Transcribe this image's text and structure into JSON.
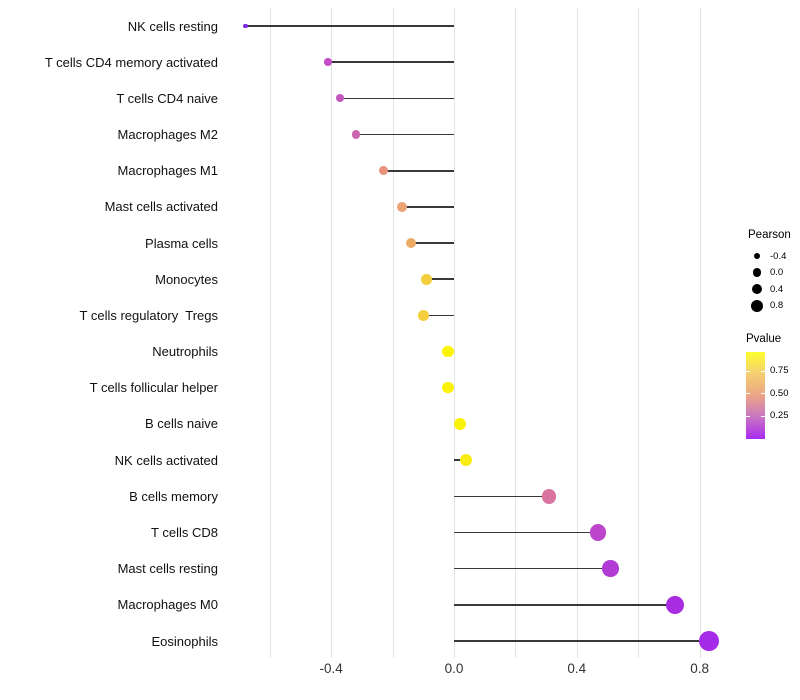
{
  "chart_data": {
    "type": "scatter",
    "subtype": "lollipop",
    "title": "",
    "xlabel": "",
    "ylabel": "",
    "x_ticks": [
      "-0.4",
      "0.0",
      "0.4",
      "0.8"
    ],
    "x_tick_values": [
      -0.4,
      0.0,
      0.4,
      0.8
    ],
    "xlim": [
      -0.7,
      1.1
    ],
    "grid": "vertical-only",
    "categories": [
      "NK cells resting",
      "T cells CD4 memory activated",
      "T cells CD4 naive",
      "Macrophages M2",
      "Macrophages M1",
      "Mast cells activated",
      "Plasma cells",
      "Monocytes",
      "T cells regulatory  Tregs",
      "Neutrophils",
      "T cells follicular helper",
      "B cells naive",
      "NK cells activated",
      "B cells memory",
      "T cells CD8",
      "Mast cells resting",
      "Macrophages M0",
      "Eosinophils"
    ],
    "series": [
      {
        "name": "Pearson",
        "values": [
          -0.68,
          -0.41,
          -0.37,
          -0.32,
          -0.23,
          -0.17,
          -0.14,
          -0.09,
          -0.1,
          -0.02,
          -0.02,
          0.02,
          0.04,
          0.31,
          0.47,
          0.51,
          0.72,
          0.83
        ]
      }
    ],
    "point_colors": [
      "#7E2CE3",
      "#C04FC9",
      "#C259BF",
      "#CB67AE",
      "#E9937E",
      "#ECA273",
      "#EDAB64",
      "#F3CF3E",
      "#F3CF3E",
      "#FBF306",
      "#FBF306",
      "#FAF203",
      "#F8EC11",
      "#D9739F",
      "#BC45CC",
      "#B23BD6",
      "#A92BE2",
      "#A52BE8"
    ],
    "stem_color": "#383838",
    "legend_position": "right"
  },
  "legend": {
    "pearson": {
      "title": "Pearson",
      "entries": [
        {
          "label": "-0.4",
          "diameter": 6.8
        },
        {
          "label": "0.0",
          "diameter": 8.6
        },
        {
          "label": "0.4",
          "diameter": 10.4
        },
        {
          "label": "0.8",
          "diameter": 12.0
        }
      ],
      "dot_color": "#000000"
    },
    "pvalue": {
      "title": "Pvalue",
      "ticks": [
        "0.75",
        "0.50",
        "0.25"
      ],
      "gradient_top_color": "#FDFD2E",
      "gradient_mid_color": "#EBA486",
      "gradient_bottom_color": "#A92BF0"
    }
  }
}
